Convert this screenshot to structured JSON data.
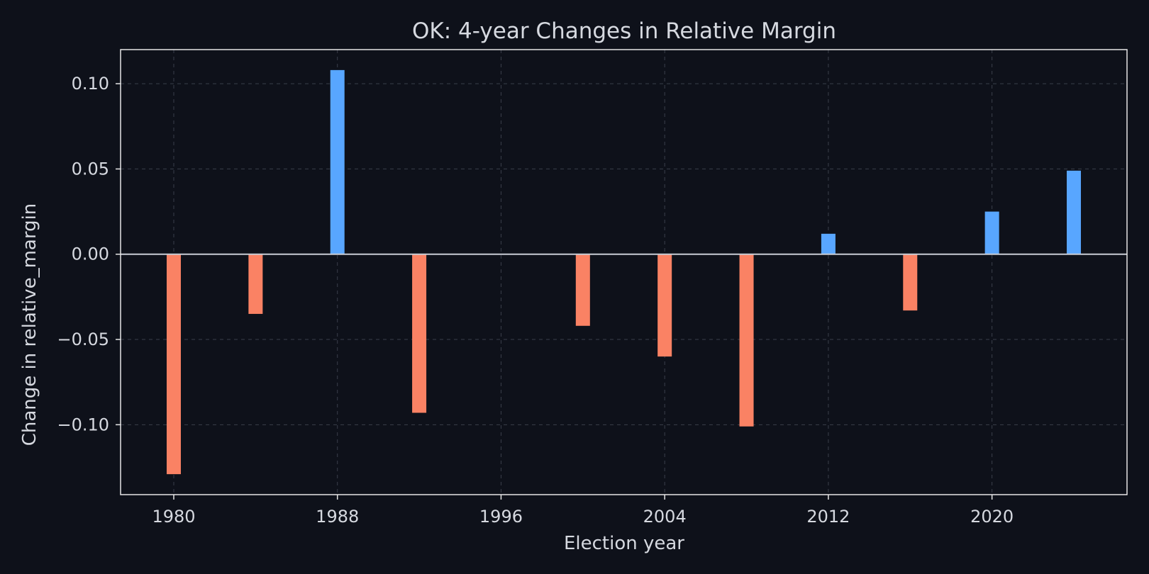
{
  "chart_data": {
    "type": "bar",
    "title": "OK: 4-year Changes in Relative Margin",
    "xlabel": "Election year",
    "ylabel": "Change in relative_margin",
    "xlim": [
      1977.4,
      2026.6
    ],
    "ylim": [
      -0.141,
      0.12
    ],
    "xticks": [
      1980,
      1988,
      1996,
      2004,
      2012,
      2020
    ],
    "xtick_labels": [
      "1980",
      "1988",
      "1996",
      "2004",
      "2012",
      "2020"
    ],
    "yticks": [
      0.1,
      0.05,
      0.0,
      -0.05,
      -0.1
    ],
    "ytick_labels": [
      "0.10",
      "0.05",
      "0.00",
      "−0.05",
      "−0.10"
    ],
    "grid": true,
    "legend": "none",
    "colors": {
      "background": "#0e111a",
      "axes_frame": "#e6e6e6",
      "grid": "#3a3f4b",
      "zero_line": "#c8ccd4",
      "positive": "#58a6ff",
      "negative": "#fa8264",
      "text": "#d6d9e0"
    },
    "bars": [
      {
        "year": 1980,
        "value": -0.129
      },
      {
        "year": 1984,
        "value": -0.035
      },
      {
        "year": 1988,
        "value": 0.108
      },
      {
        "year": 1992,
        "value": -0.093
      },
      {
        "year": 1996,
        "value": 0.0
      },
      {
        "year": 2000,
        "value": -0.042
      },
      {
        "year": 2004,
        "value": -0.06
      },
      {
        "year": 2008,
        "value": -0.101
      },
      {
        "year": 2012,
        "value": 0.012
      },
      {
        "year": 2016,
        "value": -0.033
      },
      {
        "year": 2020,
        "value": 0.025
      },
      {
        "year": 2024,
        "value": 0.049
      }
    ]
  }
}
